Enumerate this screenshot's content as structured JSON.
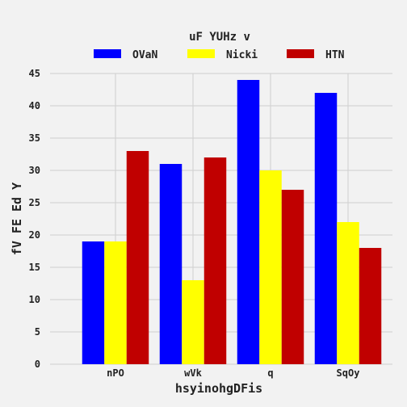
{
  "chart_data": {
    "type": "bar",
    "categories": [
      "nPO",
      "wVk",
      "q",
      "SqOy"
    ],
    "series": [
      {
        "name": "OVaN",
        "values": [
          19,
          31,
          44,
          42
        ],
        "color": "#0000ff"
      },
      {
        "name": "Nicki",
        "values": [
          19,
          13,
          30,
          22
        ],
        "color": "#ffff00"
      },
      {
        "name": "HTN",
        "values": [
          33,
          32,
          27,
          18
        ],
        "color": "#c00000"
      }
    ],
    "xlabel": "hsyinohgDFis",
    "ylabel": "fV FE Ed Y",
    "ylim": [
      0,
      45
    ],
    "yticks": [
      "0",
      "5",
      "10",
      "15",
      "20",
      "25",
      "30",
      "35",
      "40",
      "45"
    ],
    "grid": true,
    "legend": {
      "title": "uF YUHz v",
      "placement": "top-center"
    }
  }
}
